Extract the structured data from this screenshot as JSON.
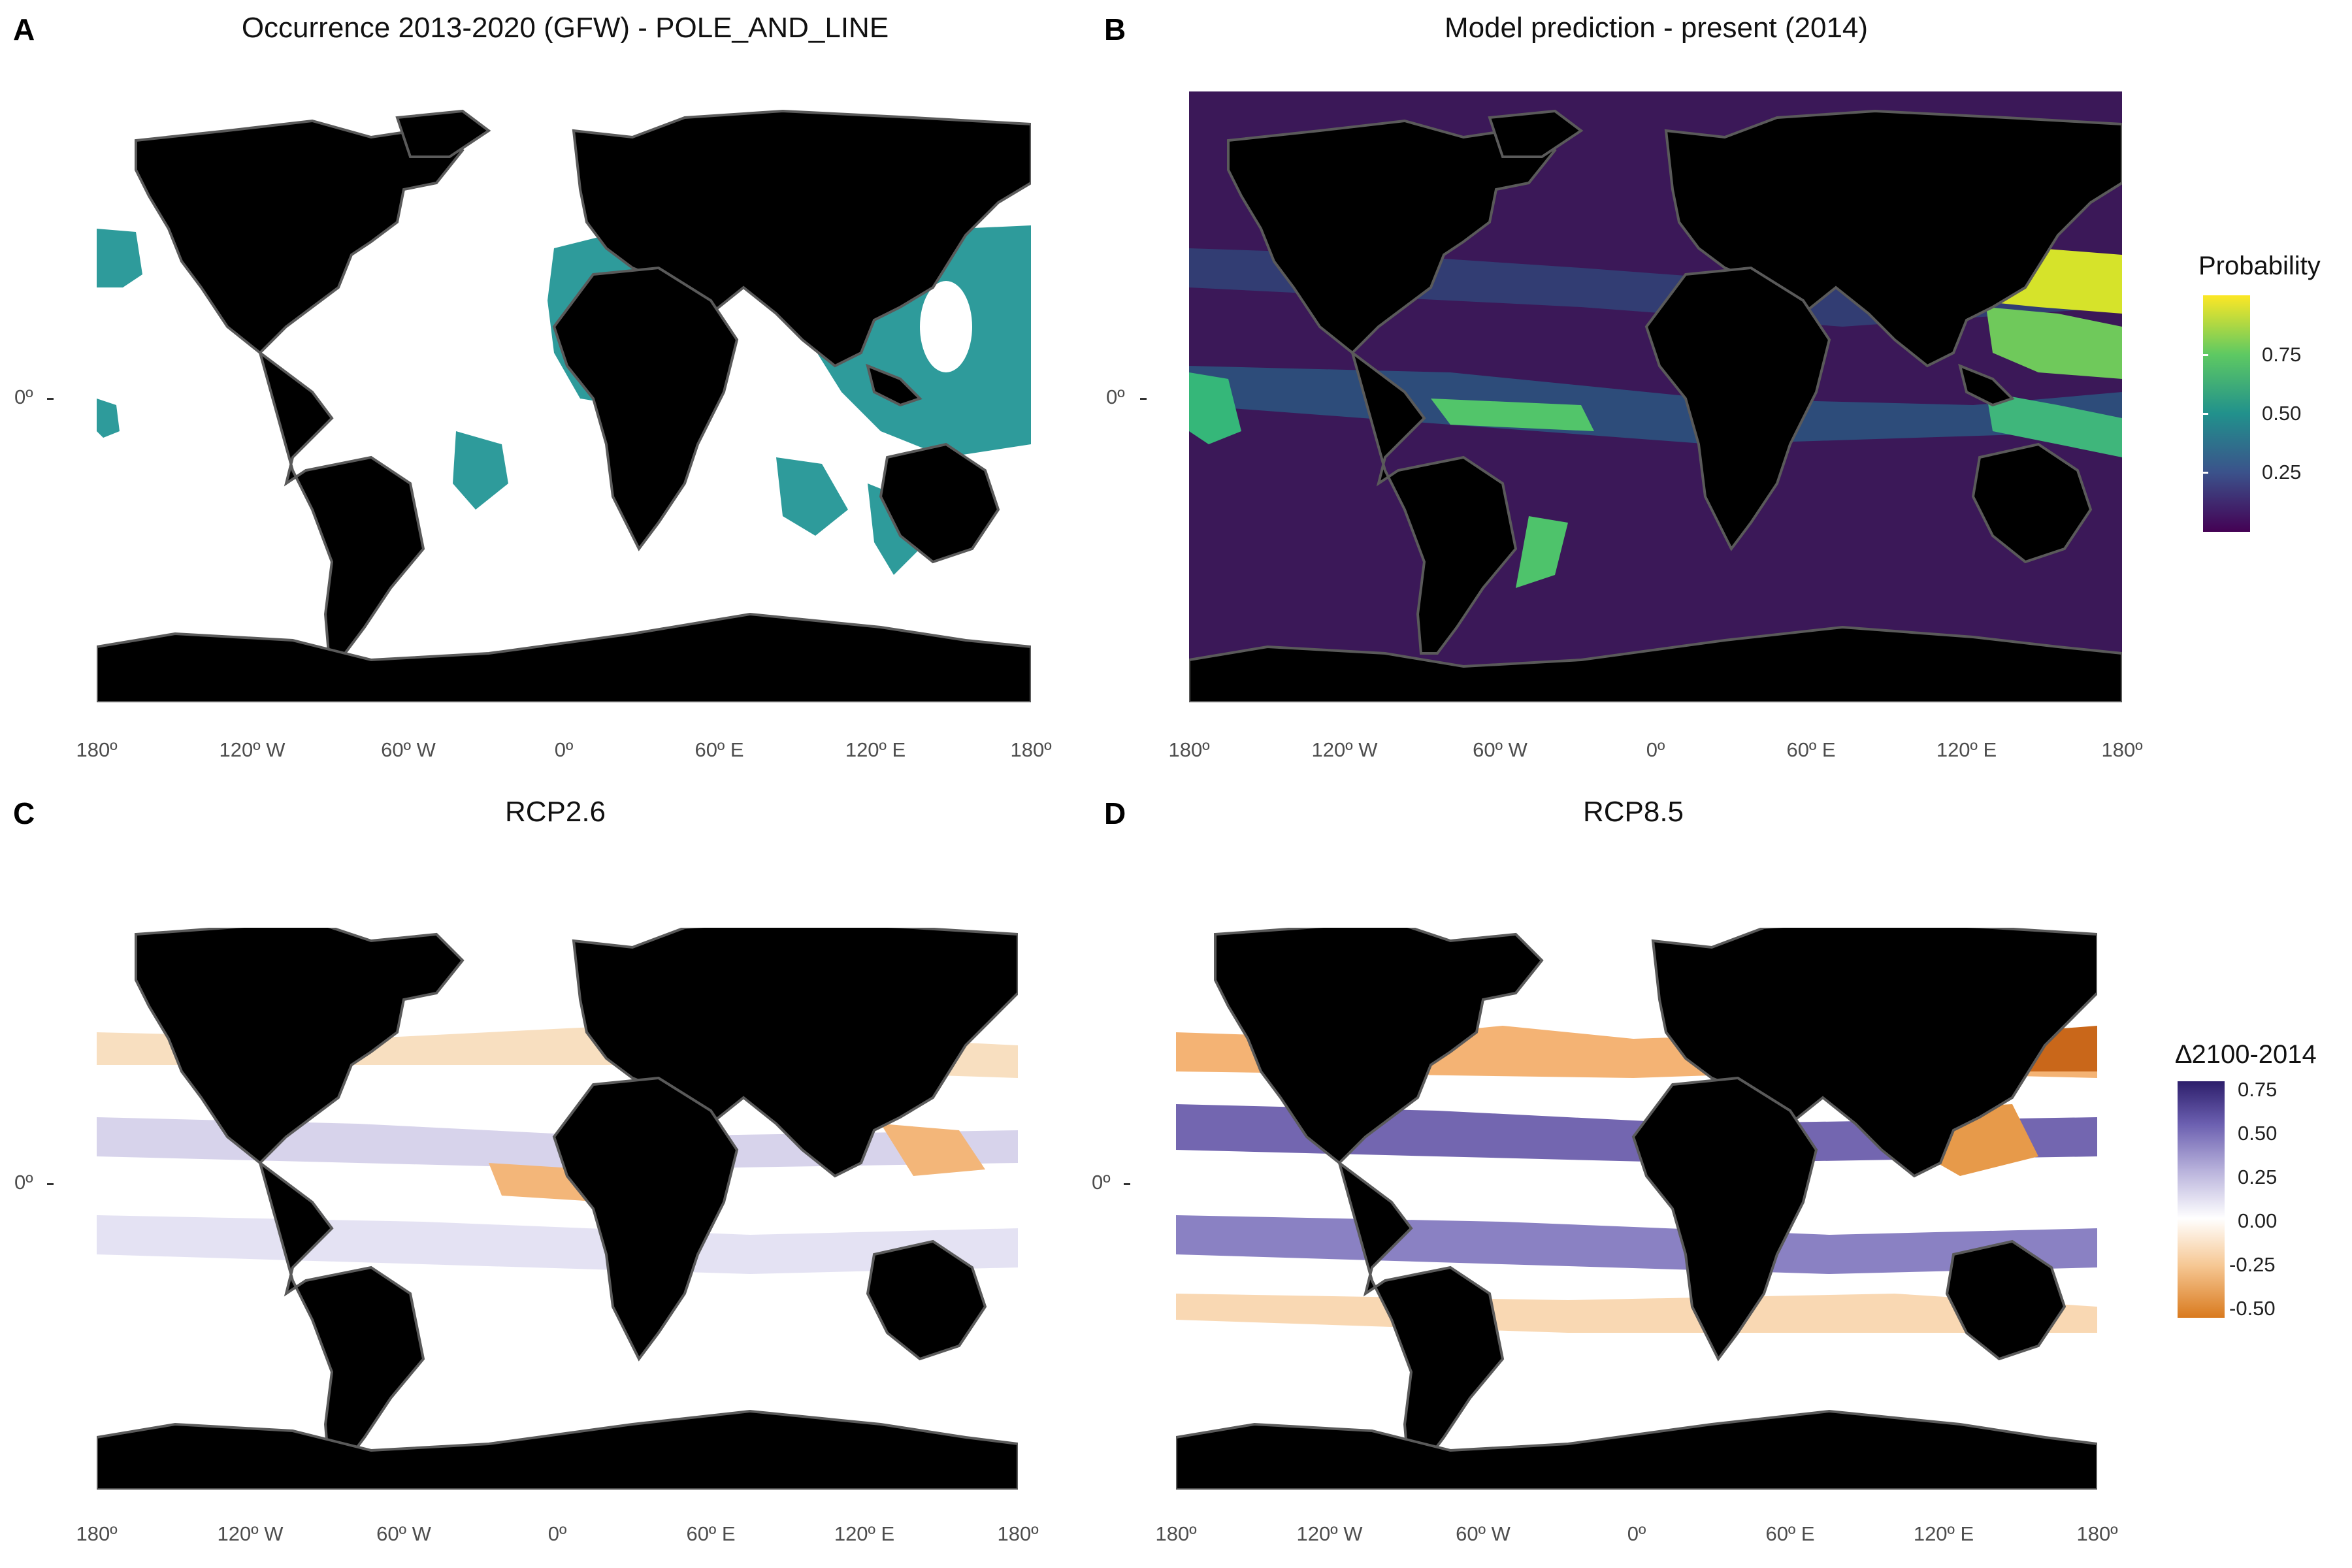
{
  "panels": [
    {
      "letter": "A",
      "title": "Occurrence 2013-2020 (GFW) - POLE_AND_LINE",
      "kind": "occurrence",
      "ocean": "#ffffff",
      "accent": "#2e9b9b"
    },
    {
      "letter": "B",
      "title": "Model prediction - present (2014)",
      "kind": "probability",
      "ocean": "#3b1858",
      "accent": "#fde725"
    },
    {
      "letter": "C",
      "title": "RCP2.6",
      "kind": "change-low",
      "ocean": "#ffffff",
      "accent": "#e08a2c"
    },
    {
      "letter": "D",
      "title": "RCP8.5",
      "kind": "change-high",
      "ocean": "#ffffff",
      "accent": "#3b2a85"
    }
  ],
  "axes": {
    "x_ticks": [
      "180º",
      "120º W",
      "60º W",
      "0º",
      "60º E",
      "120º E",
      "180º"
    ],
    "y_tick": "0º"
  },
  "legend_probability": {
    "title": "Probability",
    "labels": [
      "0.75",
      "0.50",
      "0.25"
    ],
    "colors": [
      "#440154",
      "#3b528b",
      "#21918c",
      "#5ec962",
      "#fde725"
    ]
  },
  "legend_change": {
    "title": "∆2100-2014",
    "labels": [
      "0.75",
      "0.50",
      "0.25",
      "0.00",
      "-0.25",
      "-0.50"
    ],
    "colors": [
      "#2d1e6b",
      "#6b5fb0",
      "#b9b3dc",
      "#ffffff",
      "#f6c793",
      "#d97a1e"
    ]
  },
  "colors": {
    "land": "#000000",
    "land_border": "#5a5a5a",
    "axis_text": "#4d4d4d"
  }
}
